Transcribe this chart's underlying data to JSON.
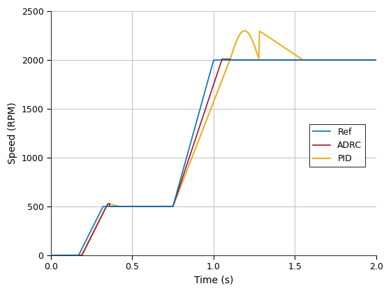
{
  "title": "",
  "xlabel": "Time (s)",
  "ylabel": "Speed (RPM)",
  "xlim": [
    0,
    2
  ],
  "ylim": [
    0,
    2500
  ],
  "xticks": [
    0,
    0.5,
    1,
    1.5,
    2
  ],
  "yticks": [
    0,
    500,
    1000,
    1500,
    2000,
    2500
  ],
  "ref_color": "#0072BD",
  "adrc_color": "#A2142F",
  "pid_color": "#EDB120",
  "legend_labels": [
    "Ref",
    "ADRC",
    "PID"
  ],
  "background_color": "#FFFFFF",
  "grid_color": "#C0C0C0",
  "linewidth": 1.2
}
